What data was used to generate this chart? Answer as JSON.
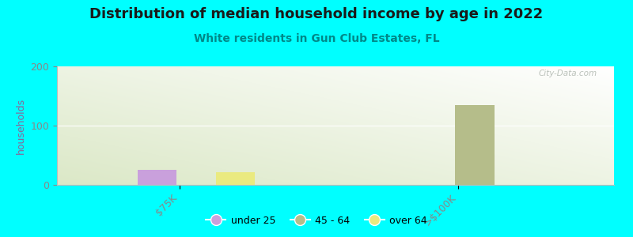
{
  "title": "Distribution of median household income by age in 2022",
  "subtitle": "White residents in Gun Club Estates, FL",
  "ylabel": "households",
  "background_color": "#00FFFF",
  "watermark": "City-Data.com",
  "ylim": [
    0,
    200
  ],
  "yticks": [
    0,
    100,
    200
  ],
  "x_categories": [
    "$75K",
    ">$100K"
  ],
  "x_tick_positions": [
    0.22,
    0.72
  ],
  "bar_width": 0.07,
  "series": [
    {
      "label": "under 25",
      "color": "#c9a0dc",
      "values": [
        25,
        0
      ],
      "x_positions": [
        0.18,
        0.68
      ]
    },
    {
      "label": "45 - 64",
      "color": "#b5bd8a",
      "values": [
        0,
        135
      ],
      "x_positions": [
        0.25,
        0.75
      ]
    },
    {
      "label": "over 64",
      "color": "#eaea80",
      "values": [
        22,
        0
      ],
      "x_positions": [
        0.32,
        0.82
      ]
    }
  ],
  "title_fontsize": 13,
  "subtitle_fontsize": 10,
  "title_color": "#1a1a1a",
  "subtitle_color": "#008888",
  "ylabel_color": "#886699",
  "tick_color": "#888888",
  "fig_width": 8.0,
  "fig_height": 3.0,
  "legend_colors": [
    "#c9a0dc",
    "#b5bd8a",
    "#eaea80"
  ],
  "legend_labels": [
    "under 25",
    "45 - 64",
    "over 64"
  ]
}
